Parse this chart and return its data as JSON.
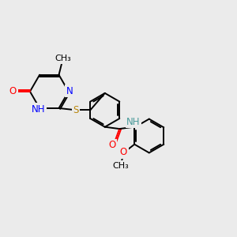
{
  "bg_color": "#ebebeb",
  "line_color": "#000000",
  "bond_width": 1.4,
  "font_size": 8.5,
  "atom_colors": {
    "N": "#0000ff",
    "O": "#ff0000",
    "S": "#b8860b",
    "NH": "#4a9a9a"
  }
}
